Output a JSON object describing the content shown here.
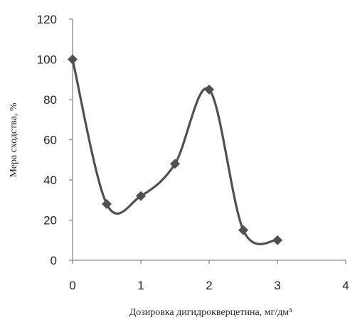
{
  "chart_data": {
    "type": "line",
    "title": "",
    "xlabel": "Дозировка дигидрокверцетина, мг/дм³",
    "ylabel": "Мера сходства, %",
    "xlim": [
      0,
      4
    ],
    "ylim": [
      0,
      120
    ],
    "xticks": [
      "0",
      "1",
      "2",
      "3",
      "4"
    ],
    "yticks": [
      "0",
      "20",
      "40",
      "60",
      "80",
      "100",
      "120"
    ],
    "grid": false,
    "smooth": true,
    "marker": "diamond",
    "series": [
      {
        "x": [
          0,
          0.5,
          1,
          1.5,
          2,
          2.5,
          3
        ],
        "y": [
          100,
          28,
          32,
          48,
          85,
          15,
          10
        ]
      }
    ],
    "colors": {
      "line": "#505050",
      "axis": "#8a8a8a",
      "text": "#262626"
    }
  }
}
